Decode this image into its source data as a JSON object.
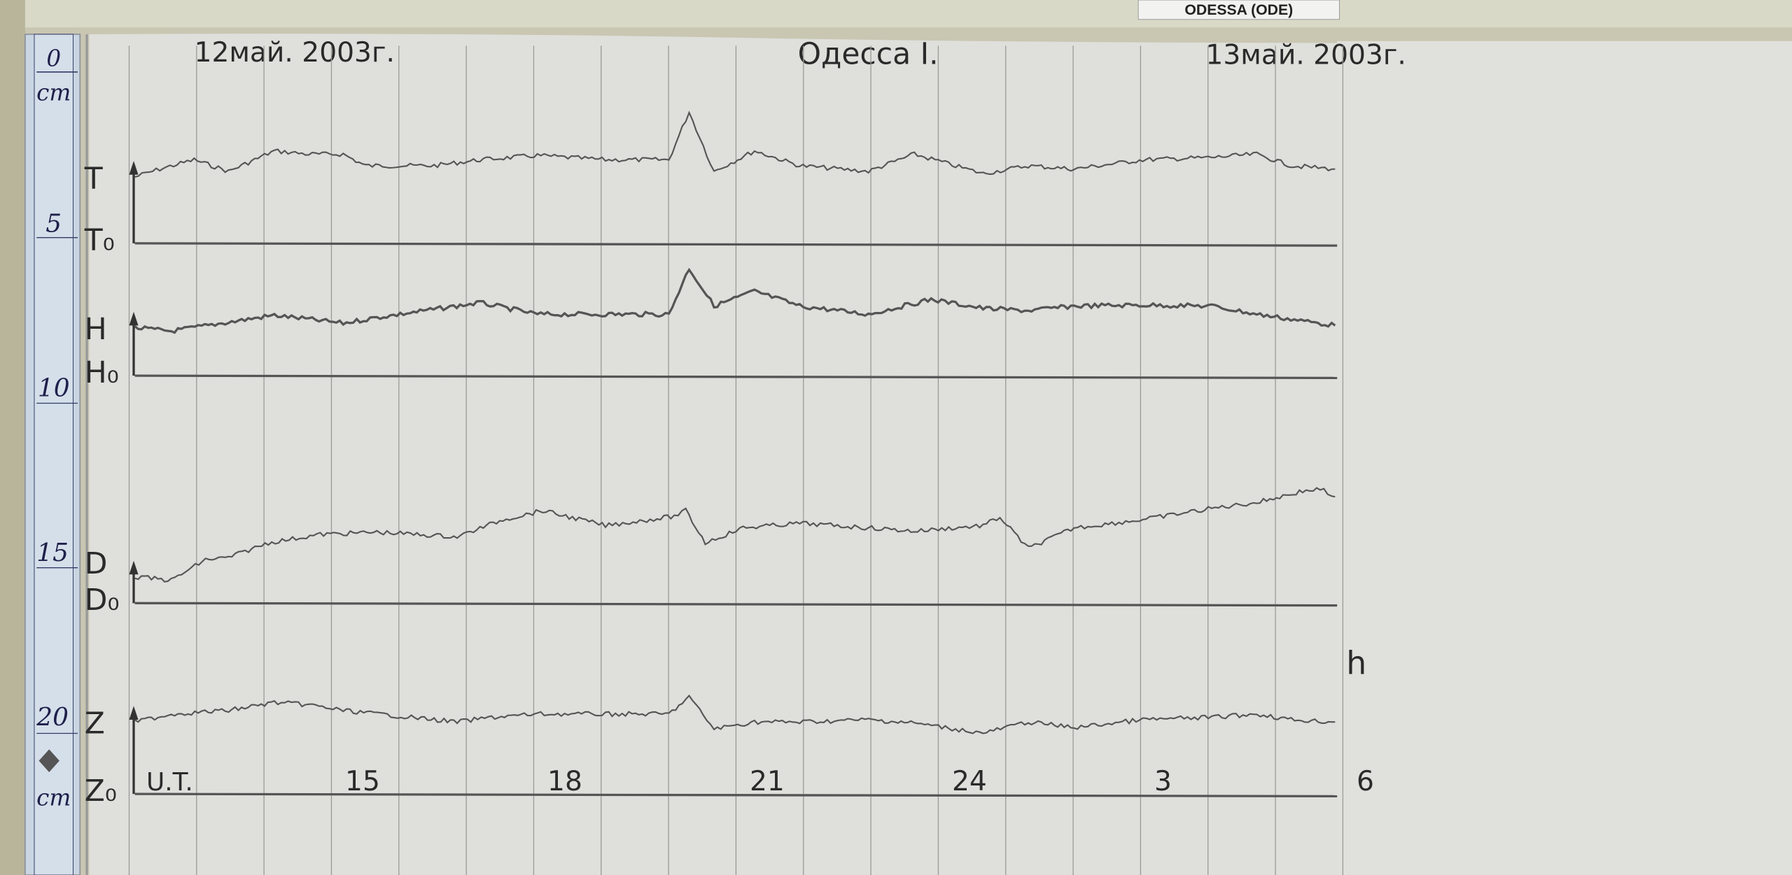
{
  "station_label": "ODESSA (ODE)",
  "header": {
    "date_start": "12май. 2003г.",
    "station": "Одесса I.",
    "date_end": "13май. 2003г."
  },
  "ruler": {
    "unit": "cm",
    "ticks": [
      "0",
      "5",
      "10",
      "15",
      "20"
    ],
    "bottom_unit": "cm"
  },
  "chart_data": {
    "type": "line",
    "title": "",
    "xlabel": "U.T.",
    "x_unit_label": "h",
    "x_ticks": [
      {
        "hour": 15,
        "label": "15"
      },
      {
        "hour": 18,
        "label": "18"
      },
      {
        "hour": 21,
        "label": "21"
      },
      {
        "hour": 24,
        "label": "24"
      },
      {
        "hour": 27,
        "label": "3"
      },
      {
        "hour": 30,
        "label": "6"
      }
    ],
    "xlim": [
      11.75,
      30
    ],
    "ylim_cm": [
      0,
      25
    ],
    "grid": "vertical hourly",
    "line_color": "#555555",
    "series": [
      {
        "name": "T",
        "baseline_label": "T₀",
        "baseline_cm": 5.64,
        "points": [
          [
            11.83,
            3.63
          ],
          [
            12.2,
            3.39
          ],
          [
            12.71,
            3.11
          ],
          [
            13.22,
            3.46
          ],
          [
            13.9,
            2.84
          ],
          [
            14.41,
            2.94
          ],
          [
            14.92,
            2.94
          ],
          [
            15.25,
            3.29
          ],
          [
            16.27,
            3.29
          ],
          [
            16.95,
            3.11
          ],
          [
            17.8,
            2.98
          ],
          [
            18.81,
            3.11
          ],
          [
            19.75,
            3.11
          ],
          [
            20.05,
            1.66
          ],
          [
            20.42,
            3.46
          ],
          [
            21.02,
            2.84
          ],
          [
            21.69,
            3.29
          ],
          [
            22.71,
            3.46
          ],
          [
            23.39,
            2.94
          ],
          [
            24.41,
            3.53
          ],
          [
            25.08,
            3.29
          ],
          [
            25.76,
            3.39
          ],
          [
            26.78,
            3.11
          ],
          [
            27.8,
            3.04
          ],
          [
            28.47,
            2.94
          ],
          [
            28.98,
            3.29
          ],
          [
            29.63,
            3.39
          ]
        ]
      },
      {
        "name": "H",
        "baseline_label": "H₀",
        "baseline_cm": 9.65,
        "points": [
          [
            11.83,
            8.2
          ],
          [
            12.37,
            8.3
          ],
          [
            13.22,
            8.03
          ],
          [
            13.9,
            7.82
          ],
          [
            14.92,
            8.06
          ],
          [
            15.42,
            7.89
          ],
          [
            16.95,
            7.44
          ],
          [
            17.8,
            7.79
          ],
          [
            18.81,
            7.79
          ],
          [
            19.75,
            7.79
          ],
          [
            20.05,
            6.4
          ],
          [
            20.42,
            7.54
          ],
          [
            21.02,
            7.09
          ],
          [
            21.69,
            7.54
          ],
          [
            22.71,
            7.79
          ],
          [
            23.64,
            7.34
          ],
          [
            24.41,
            7.61
          ],
          [
            25.08,
            7.68
          ],
          [
            25.76,
            7.54
          ],
          [
            26.78,
            7.51
          ],
          [
            27.8,
            7.54
          ],
          [
            28.47,
            7.79
          ],
          [
            29.63,
            8.13
          ]
        ]
      },
      {
        "name": "D",
        "baseline_label": "D₀",
        "baseline_cm": 16.54,
        "points": [
          [
            11.83,
            15.74
          ],
          [
            12.37,
            15.85
          ],
          [
            12.88,
            15.22
          ],
          [
            13.22,
            15.16
          ],
          [
            13.81,
            14.71
          ],
          [
            14.58,
            14.46
          ],
          [
            15.42,
            14.39
          ],
          [
            16.61,
            14.53
          ],
          [
            17.29,
            14.01
          ],
          [
            17.88,
            13.74
          ],
          [
            18.81,
            14.19
          ],
          [
            19.83,
            13.91
          ],
          [
            20.0,
            13.74
          ],
          [
            20.29,
            14.71
          ],
          [
            20.85,
            14.26
          ],
          [
            21.69,
            14.12
          ],
          [
            22.71,
            14.26
          ],
          [
            23.39,
            14.36
          ],
          [
            24.41,
            14.19
          ],
          [
            24.66,
            13.94
          ],
          [
            25.08,
            14.88
          ],
          [
            25.76,
            14.26
          ],
          [
            26.78,
            14.01
          ],
          [
            27.8,
            13.67
          ],
          [
            28.47,
            13.49
          ],
          [
            29.15,
            13.15
          ],
          [
            29.41,
            13.08
          ],
          [
            29.63,
            13.32
          ]
        ]
      },
      {
        "name": "Z",
        "baseline_label": "Z₀",
        "baseline_cm": 22.32,
        "points": [
          [
            11.83,
            20.14
          ],
          [
            12.37,
            19.9
          ],
          [
            13.22,
            19.79
          ],
          [
            13.9,
            19.55
          ],
          [
            14.41,
            19.62
          ],
          [
            14.92,
            19.79
          ],
          [
            15.93,
            20.0
          ],
          [
            16.61,
            20.14
          ],
          [
            17.12,
            20.0
          ],
          [
            17.8,
            19.9
          ],
          [
            18.81,
            19.9
          ],
          [
            19.75,
            19.9
          ],
          [
            20.05,
            19.38
          ],
          [
            20.42,
            20.35
          ],
          [
            21.02,
            20.14
          ],
          [
            21.69,
            20.14
          ],
          [
            22.71,
            20.07
          ],
          [
            23.39,
            20.17
          ],
          [
            24.41,
            20.48
          ],
          [
            25.08,
            20.14
          ],
          [
            25.76,
            20.31
          ],
          [
            26.78,
            20.07
          ],
          [
            27.8,
            20.0
          ],
          [
            28.47,
            19.9
          ],
          [
            28.98,
            20.07
          ],
          [
            29.63,
            20.14
          ]
        ]
      }
    ]
  }
}
